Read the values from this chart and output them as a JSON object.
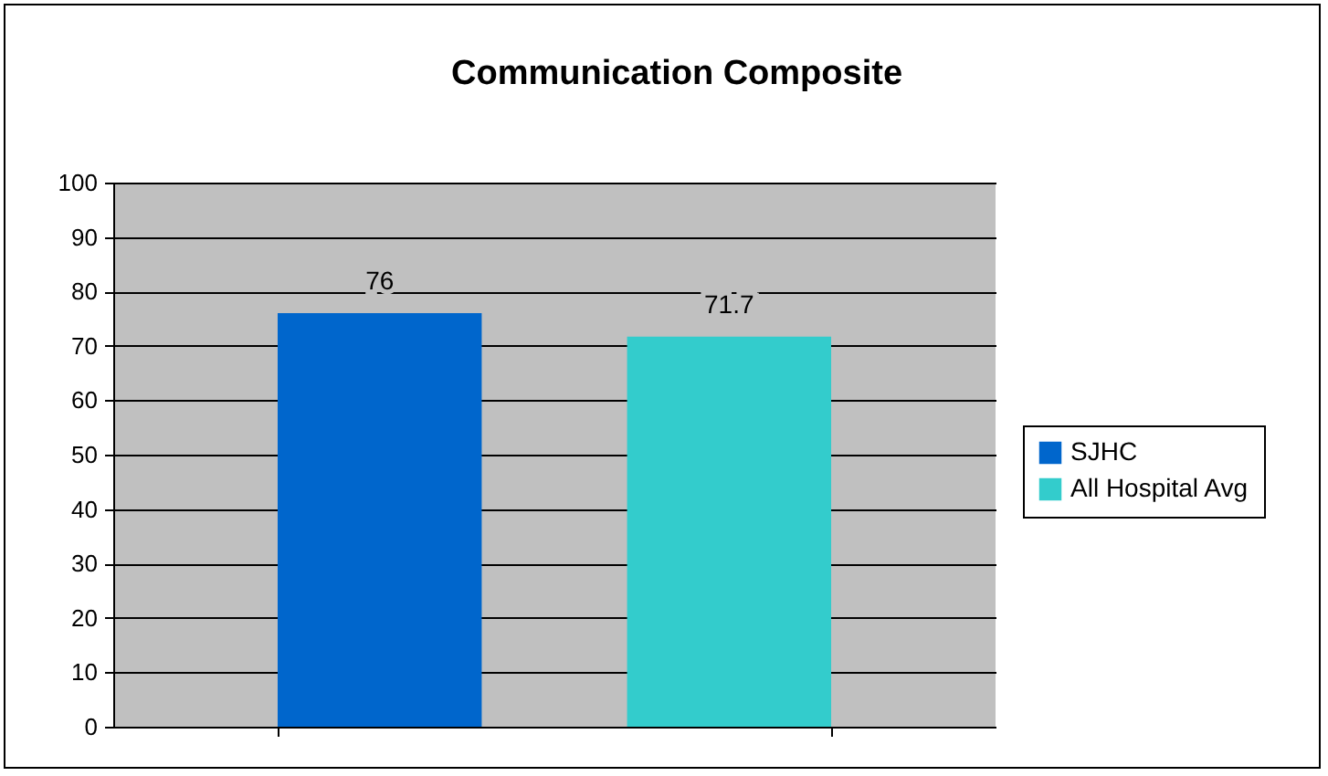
{
  "chart_data": {
    "type": "bar",
    "title": "Communication Composite",
    "categories": [
      null
    ],
    "series": [
      {
        "name": "SJHC",
        "color": "#0066cc",
        "values": [
          76
        ]
      },
      {
        "name": "All Hospital Avg",
        "color": "#33cccc",
        "values": [
          71.7
        ]
      }
    ],
    "ylim": [
      0,
      100
    ],
    "yticks": [
      0,
      10,
      20,
      30,
      40,
      50,
      60,
      70,
      80,
      90,
      100
    ],
    "grid": "y",
    "legend": "right",
    "data_labels": true
  }
}
